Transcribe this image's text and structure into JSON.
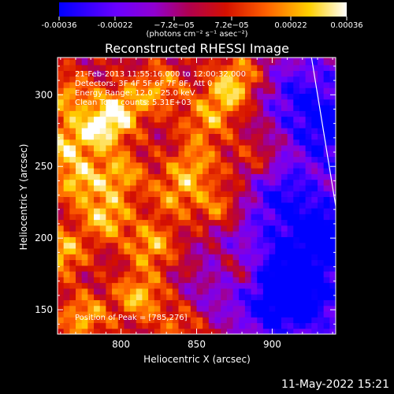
{
  "colors": {
    "background": "#000000",
    "text": "#ffffff",
    "limb": "#ffffff"
  },
  "colorbar": {
    "ticks": [
      "-0.00036",
      "-0.00022",
      "−7.2e−05",
      "7.2e−05",
      "0.00022",
      "0.00036"
    ],
    "tick_values": [
      -0.00036,
      -0.00022,
      -7.2e-05,
      7.2e-05,
      0.00022,
      0.00036
    ],
    "range": [
      -0.00036,
      0.00036
    ],
    "units_label": "(photons cm⁻² s⁻¹ asec⁻²)",
    "colormap": [
      [
        "#0000ff",
        0
      ],
      [
        "#6a00ff",
        0.2
      ],
      [
        "#9000d0",
        0.33
      ],
      [
        "#b00050",
        0.45
      ],
      [
        "#d41000",
        0.58
      ],
      [
        "#ff6000",
        0.72
      ],
      [
        "#ffd000",
        0.87
      ],
      [
        "#ffffff",
        1
      ]
    ]
  },
  "chart_data": {
    "type": "heatmap",
    "title": "Reconstructed RHESSI Image",
    "xlabel": "Heliocentric X (arcsec)",
    "ylabel": "Heliocentric Y (arcsec)",
    "xlim": [
      758,
      942
    ],
    "ylim": [
      133,
      326
    ],
    "xticks": [
      800,
      850,
      900
    ],
    "yticks": [
      150,
      200,
      250,
      300
    ],
    "grid_step": 4,
    "limb_line": [
      [
        926,
        326
      ],
      [
        943,
        216
      ]
    ],
    "annotations": [
      "21-Feb-2013 11:55:16.000 to 12:00:32.000",
      "Detectors: 3F 4F 5F 6F 7F 8F, Att 0",
      "Energy Range: 12.0 - 25.0 keV",
      "Clean     Total counts: 5.31E+03"
    ],
    "peak_label": "Position of Peak = [785,276]",
    "peak": [
      785,
      276
    ],
    "hot_spots": [
      [
        785,
        276,
        1.0
      ],
      [
        800,
        290,
        0.9
      ],
      [
        772,
        240,
        0.85
      ],
      [
        790,
        215,
        0.9
      ],
      [
        820,
        195,
        0.8
      ],
      [
        812,
        160,
        0.85
      ],
      [
        775,
        145,
        0.8
      ],
      [
        848,
        250,
        0.7
      ],
      [
        870,
        300,
        0.75
      ],
      [
        865,
        220,
        0.7
      ],
      [
        882,
        180,
        0.55
      ],
      [
        840,
        140,
        0.55
      ],
      [
        765,
        300,
        0.7
      ],
      [
        825,
        305,
        0.7
      ],
      [
        855,
        280,
        0.6
      ],
      [
        890,
        255,
        0.45
      ],
      [
        760,
        190,
        0.9
      ],
      [
        800,
        245,
        0.75
      ],
      [
        835,
        230,
        0.6
      ],
      [
        880,
        315,
        0.6
      ],
      [
        760,
        265,
        0.8
      ]
    ],
    "cold_spots": [
      [
        930,
        200,
        1.0
      ],
      [
        920,
        160,
        0.9
      ],
      [
        905,
        230,
        0.8
      ],
      [
        935,
        275,
        0.7
      ],
      [
        898,
        150,
        0.8
      ],
      [
        915,
        300,
        0.6
      ],
      [
        860,
        160,
        0.45
      ],
      [
        875,
        200,
        0.5
      ],
      [
        900,
        180,
        0.7
      ]
    ]
  },
  "timestamp": "11-May-2022 15:21"
}
